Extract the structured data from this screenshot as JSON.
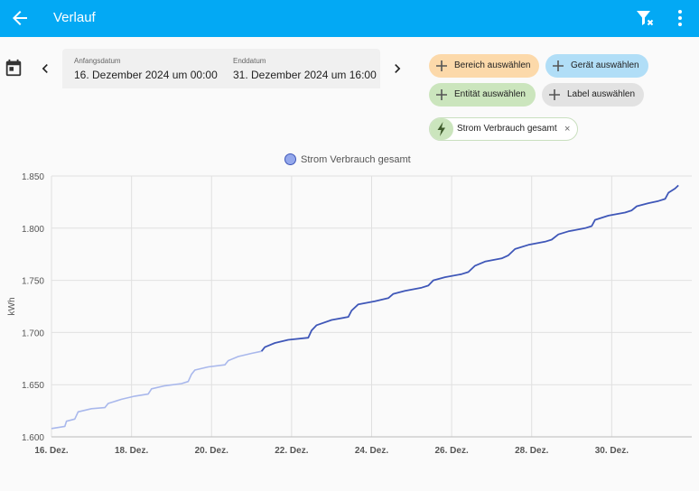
{
  "header": {
    "title": "Verlauf"
  },
  "date_range": {
    "start_label": "Anfangsdatum",
    "start_value": "16. Dezember 2024 um 00:00",
    "end_label": "Enddatum",
    "end_value": "31. Dezember 2024 um 16:00"
  },
  "targets": {
    "area": "Bereich auswählen",
    "device": "Gerät auswählen",
    "entity": "Entität auswählen",
    "label": "Label auswählen",
    "selected_entity": "Strom Verbrauch gesamt",
    "remove_symbol": "×"
  },
  "colors": {
    "topbar": "#03a9f4",
    "series_line": "#3f57b8",
    "series_line_faded": "#a9b8ec"
  },
  "chart_data": {
    "type": "line",
    "ylabel": "kWh",
    "ylim": [
      1600,
      1850
    ],
    "yticks": [
      1600,
      1650,
      1700,
      1750,
      1800,
      1850
    ],
    "ytick_labels": [
      "1.600",
      "1.650",
      "1.700",
      "1.750",
      "1.800",
      "1.850"
    ],
    "xlim": [
      "2024-12-16T00:00",
      "2024-12-31T16:00"
    ],
    "xtick_labels": [
      "16. Dez.",
      "18. Dez.",
      "20. Dez.",
      "22. Dez.",
      "24. Dez.",
      "26. Dez.",
      "28. Dez.",
      "30. Dez."
    ],
    "xtick_dates": [
      "2024-12-16",
      "2024-12-18",
      "2024-12-20",
      "2024-12-22",
      "2024-12-24",
      "2024-12-26",
      "2024-12-28",
      "2024-12-30"
    ],
    "grid": true,
    "legend_position": "top-center",
    "series": [
      {
        "name": "Strom Verbrauch gesamt",
        "faded_before": "2024-12-21T06:00",
        "points": [
          [
            "2024-12-16T00:00",
            1608
          ],
          [
            "2024-12-16T08:00",
            1610
          ],
          [
            "2024-12-16T09:00",
            1615
          ],
          [
            "2024-12-16T14:00",
            1617
          ],
          [
            "2024-12-16T16:00",
            1624
          ],
          [
            "2024-12-17T00:00",
            1627
          ],
          [
            "2024-12-17T08:00",
            1628
          ],
          [
            "2024-12-17T10:00",
            1632
          ],
          [
            "2024-12-17T18:00",
            1636
          ],
          [
            "2024-12-18T02:00",
            1639
          ],
          [
            "2024-12-18T10:00",
            1641
          ],
          [
            "2024-12-18T12:00",
            1646
          ],
          [
            "2024-12-18T20:00",
            1649
          ],
          [
            "2024-12-19T06:00",
            1651
          ],
          [
            "2024-12-19T10:00",
            1653
          ],
          [
            "2024-12-19T12:00",
            1660
          ],
          [
            "2024-12-19T14:00",
            1664
          ],
          [
            "2024-12-19T22:00",
            1667
          ],
          [
            "2024-12-20T08:00",
            1669
          ],
          [
            "2024-12-20T10:00",
            1673
          ],
          [
            "2024-12-20T16:00",
            1677
          ],
          [
            "2024-12-21T00:00",
            1680
          ],
          [
            "2024-12-21T06:00",
            1682
          ],
          [
            "2024-12-21T08:00",
            1686
          ],
          [
            "2024-12-21T14:00",
            1690
          ],
          [
            "2024-12-21T22:00",
            1693
          ],
          [
            "2024-12-22T10:00",
            1695
          ],
          [
            "2024-12-22T12:00",
            1702
          ],
          [
            "2024-12-22T15:00",
            1707
          ],
          [
            "2024-12-23T00:00",
            1712
          ],
          [
            "2024-12-23T10:00",
            1715
          ],
          [
            "2024-12-23T12:00",
            1721
          ],
          [
            "2024-12-23T16:00",
            1727
          ],
          [
            "2024-12-24T02:00",
            1730
          ],
          [
            "2024-12-24T10:00",
            1733
          ],
          [
            "2024-12-24T13:00",
            1737
          ],
          [
            "2024-12-24T20:00",
            1740
          ],
          [
            "2024-12-25T06:00",
            1743
          ],
          [
            "2024-12-25T10:00",
            1745
          ],
          [
            "2024-12-25T13:00",
            1750
          ],
          [
            "2024-12-25T20:00",
            1753
          ],
          [
            "2024-12-26T06:00",
            1756
          ],
          [
            "2024-12-26T10:00",
            1758
          ],
          [
            "2024-12-26T14:00",
            1764
          ],
          [
            "2024-12-26T20:00",
            1768
          ],
          [
            "2024-12-27T06:00",
            1771
          ],
          [
            "2024-12-27T10:00",
            1774
          ],
          [
            "2024-12-27T14:00",
            1780
          ],
          [
            "2024-12-27T22:00",
            1784
          ],
          [
            "2024-12-28T08:00",
            1787
          ],
          [
            "2024-12-28T12:00",
            1789
          ],
          [
            "2024-12-28T16:00",
            1794
          ],
          [
            "2024-12-28T22:00",
            1797
          ],
          [
            "2024-12-29T08:00",
            1800
          ],
          [
            "2024-12-29T12:00",
            1802
          ],
          [
            "2024-12-29T14:00",
            1808
          ],
          [
            "2024-12-29T22:00",
            1812
          ],
          [
            "2024-12-30T08:00",
            1815
          ],
          [
            "2024-12-30T12:00",
            1817
          ],
          [
            "2024-12-30T15:00",
            1821
          ],
          [
            "2024-12-30T22:00",
            1824
          ],
          [
            "2024-12-31T04:00",
            1826
          ],
          [
            "2024-12-31T08:00",
            1828
          ],
          [
            "2024-12-31T10:00",
            1834
          ],
          [
            "2024-12-31T14:00",
            1838
          ],
          [
            "2024-12-31T16:00",
            1841
          ]
        ]
      }
    ]
  }
}
